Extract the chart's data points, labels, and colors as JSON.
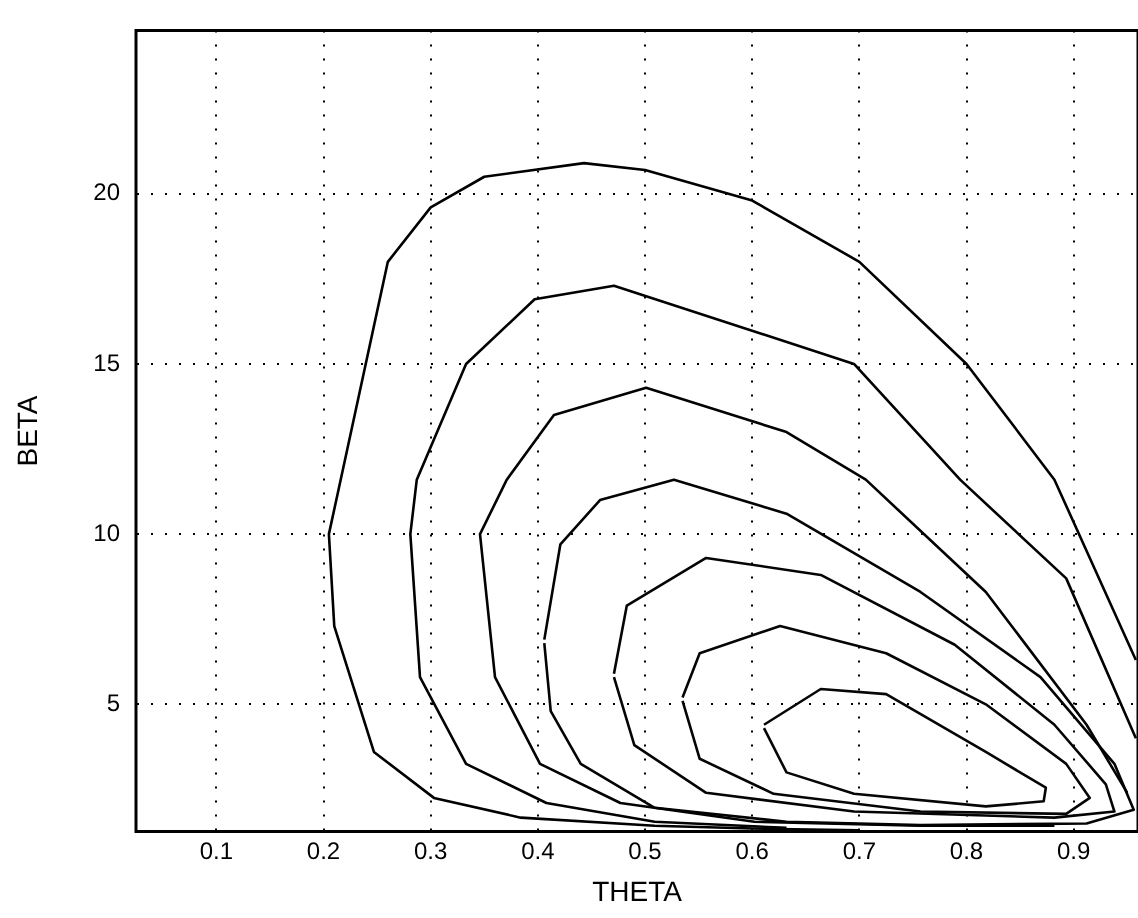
{
  "chart_data": {
    "type": "line",
    "xlabel": "THETA",
    "ylabel": "BETA",
    "xlim": [
      0.025,
      0.96
    ],
    "ylim": [
      1.26,
      24.8
    ],
    "xticks": [
      0.1,
      0.2,
      0.3,
      0.4,
      0.5,
      0.6,
      0.7,
      0.8,
      0.9
    ],
    "yticks": [
      5,
      10,
      15,
      20
    ],
    "grid": true,
    "legend": false,
    "marker": "none",
    "line_style": "solid",
    "series": [
      {
        "color": "#000000",
        "x": [
          0.7,
          0.6,
          0.509,
          0.384,
          0.303,
          0.247,
          0.21,
          0.205,
          0.216,
          0.26,
          0.3,
          0.35,
          0.443,
          0.5,
          0.6,
          0.7,
          0.8,
          0.882,
          0.958
        ],
        "values": [
          1.3,
          1.35,
          1.43,
          1.67,
          2.25,
          3.6,
          7.3,
          10,
          11.6,
          18,
          19.6,
          20.5,
          20.9,
          20.7,
          19.8,
          18,
          15,
          11.6,
          6.3
        ]
      },
      {
        "color": "#010101",
        "x": [
          0.632,
          0.509,
          0.408,
          0.333,
          0.29,
          0.281,
          0.287,
          0.333,
          0.397,
          0.471,
          0.695,
          0.794,
          0.893,
          0.958
        ],
        "values": [
          1.37,
          1.55,
          2.1,
          3.25,
          5.8,
          10,
          11.6,
          15,
          16.9,
          17.3,
          15,
          11.6,
          8.7,
          4
        ]
      },
      {
        "color": "#020202",
        "x": [
          0.882,
          0.757,
          0.602,
          0.477,
          0.402,
          0.36,
          0.346,
          0.371,
          0.415,
          0.501,
          0.632,
          0.706,
          0.818,
          0.912,
          0.95
        ],
        "values": [
          1.43,
          1.43,
          1.55,
          2.1,
          3.25,
          5.8,
          10,
          11.6,
          13.5,
          14.3,
          13,
          11.6,
          8.3,
          4.4,
          2.4
        ]
      },
      {
        "color": "#030303",
        "x": [
          0.406,
          0.421,
          0.458,
          0.527,
          0.632,
          0.757,
          0.869,
          0.938,
          0.956,
          0.912,
          0.757,
          0.632,
          0.509,
          0.44,
          0.412,
          0.406
        ],
        "values": [
          6.9,
          9.7,
          11,
          11.6,
          10.6,
          8.3,
          5.8,
          3.25,
          1.9,
          1.5,
          1.45,
          1.55,
          1.96,
          3.25,
          4.8,
          6.8
        ]
      },
      {
        "color": "#040404",
        "x": [
          0.471,
          0.483,
          0.557,
          0.664,
          0.789,
          0.882,
          0.93,
          0.938,
          0.882,
          0.695,
          0.557,
          0.49,
          0.471
        ],
        "values": [
          5.9,
          7.9,
          9.3,
          8.8,
          6.75,
          4.4,
          2.65,
          1.85,
          1.67,
          1.85,
          2.4,
          3.8,
          5.8
        ]
      },
      {
        "color": "#050505",
        "x": [
          0.535,
          0.551,
          0.626,
          0.725,
          0.818,
          0.893,
          0.915,
          0.893,
          0.757,
          0.62,
          0.551,
          0.535
        ],
        "values": [
          5.2,
          6.5,
          7.3,
          6.5,
          5,
          3.25,
          2.25,
          1.78,
          1.85,
          2.37,
          3.4,
          5.1
        ]
      },
      {
        "color": "#060606",
        "x": [
          0.611,
          0.664,
          0.725,
          0.818,
          0.874,
          0.872,
          0.818,
          0.695,
          0.632,
          0.611
        ],
        "values": [
          4.4,
          5.45,
          5.3,
          3.6,
          2.55,
          2.15,
          2,
          2.37,
          3,
          4.3
        ]
      }
    ]
  }
}
